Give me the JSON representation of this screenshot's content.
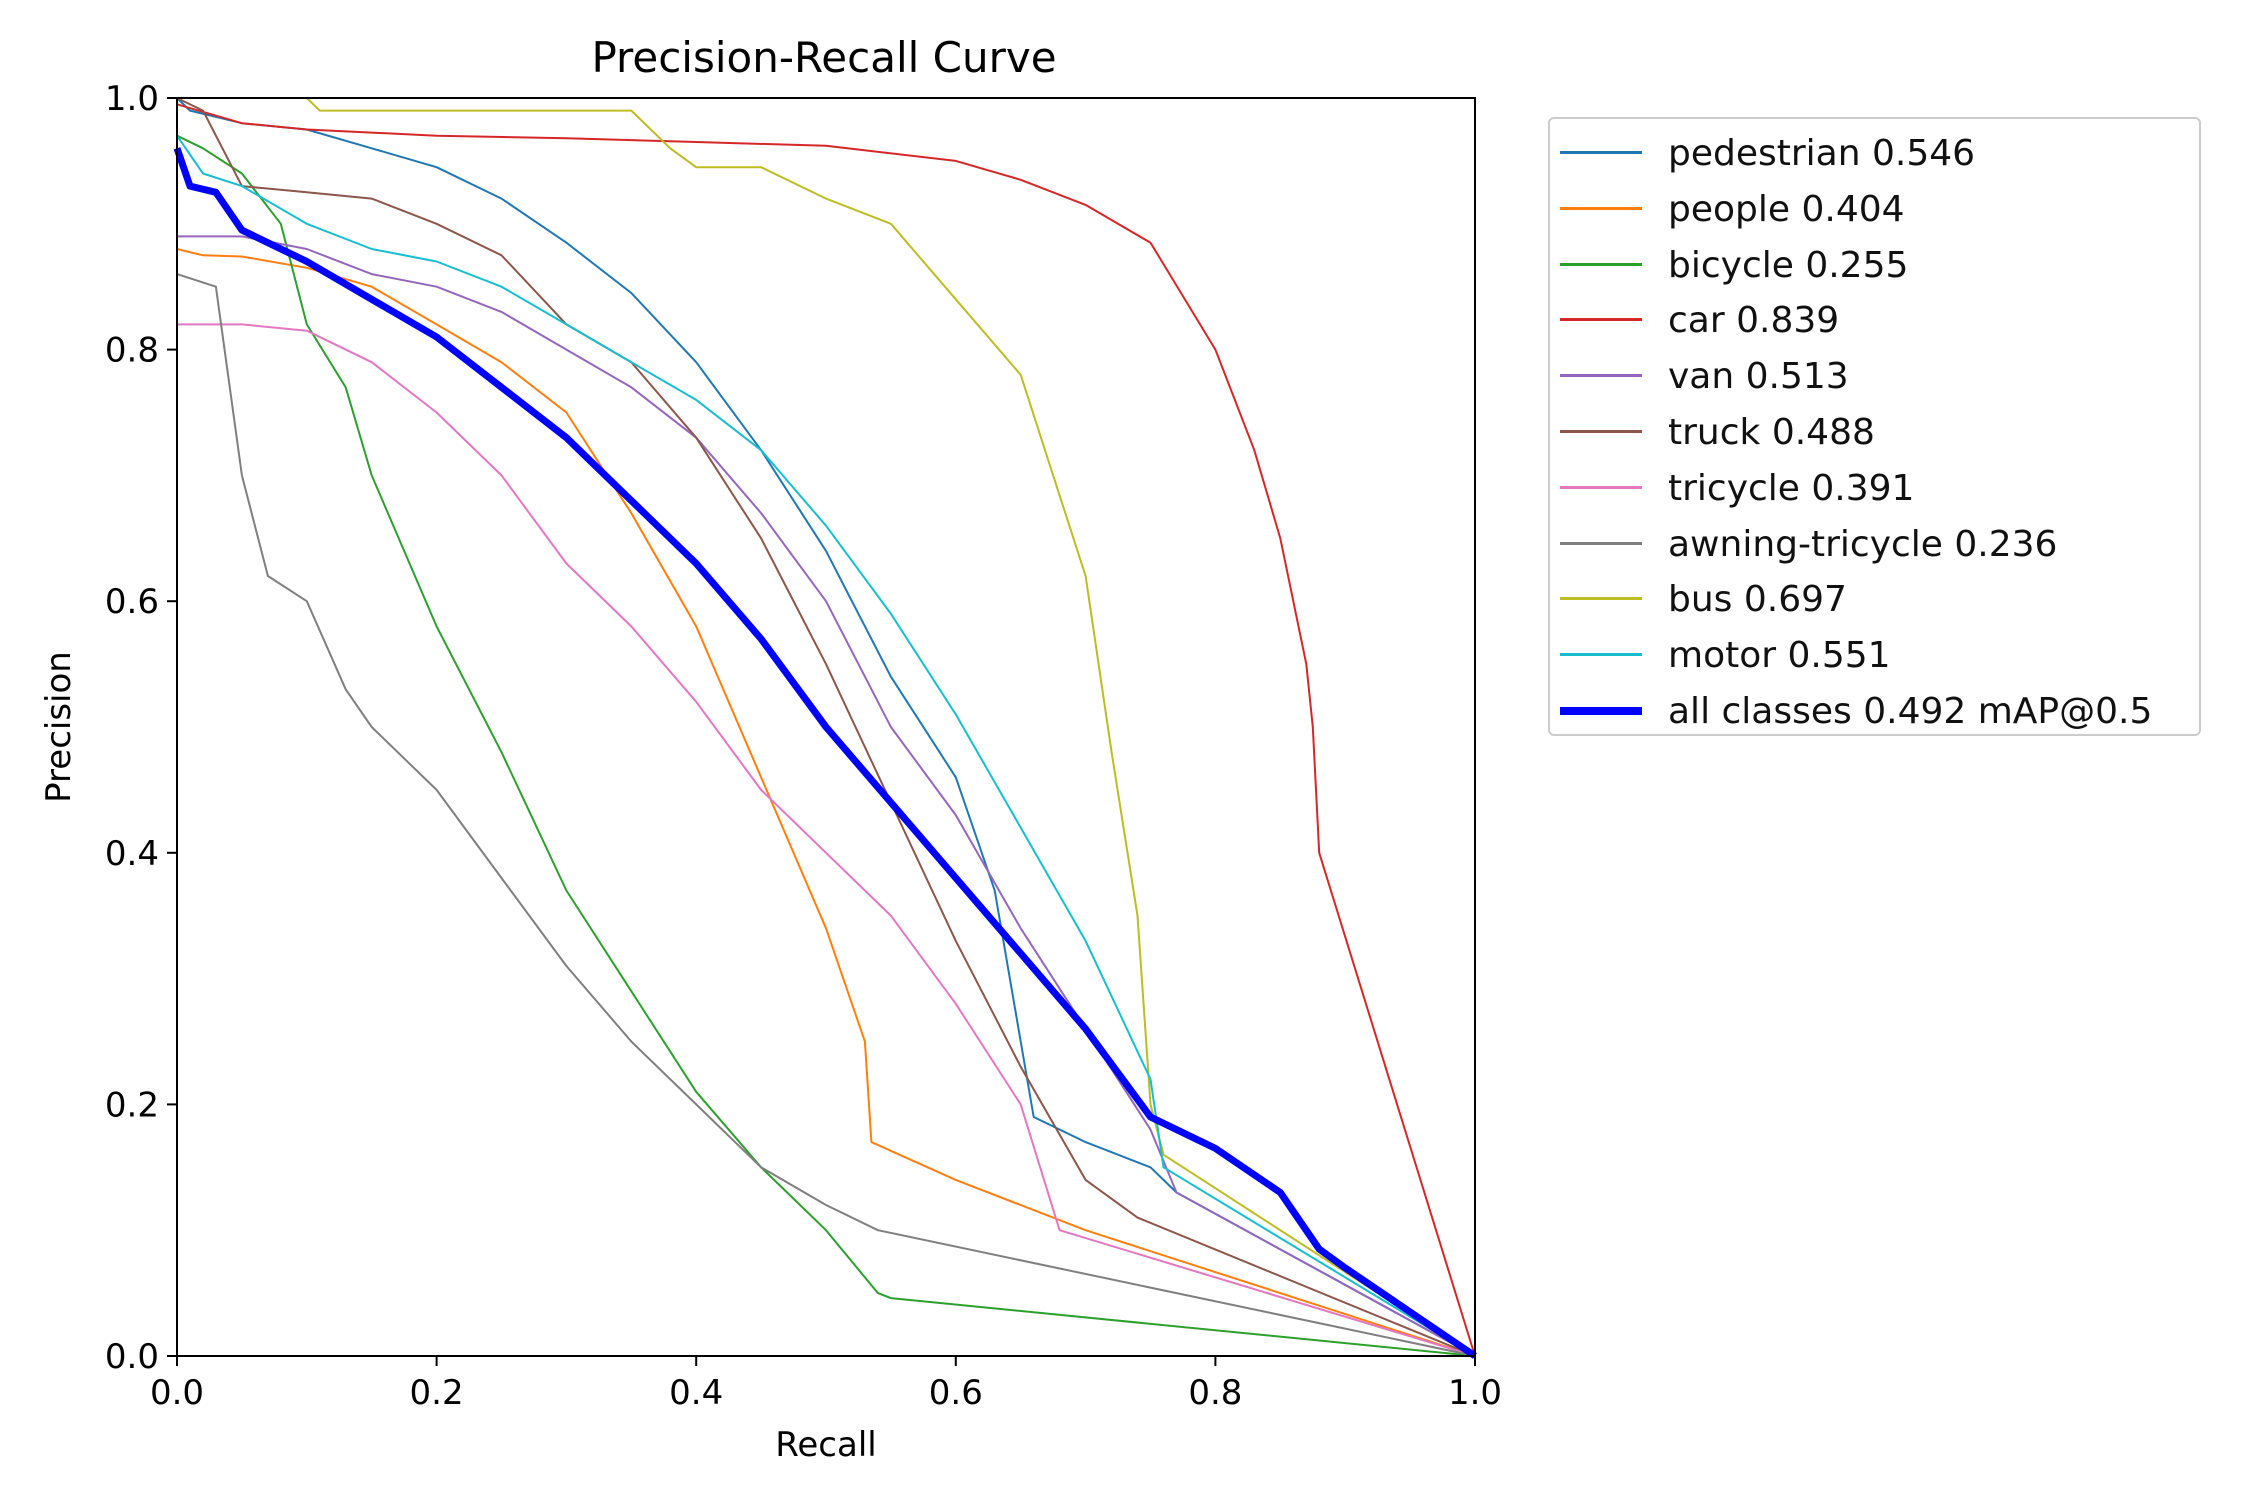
{
  "chart_data": {
    "type": "line",
    "title": "Precision-Recall Curve",
    "xlabel": "Recall",
    "ylabel": "Precision",
    "xlim": [
      0,
      1
    ],
    "ylim": [
      0,
      1
    ],
    "xticks": [
      "0.0",
      "0.2",
      "0.4",
      "0.6",
      "0.8",
      "1.0"
    ],
    "yticks": [
      "0.0",
      "0.2",
      "0.4",
      "0.6",
      "0.8",
      "1.0"
    ],
    "legend_position": "outside-right-top",
    "series": [
      {
        "name": "pedestrian",
        "label": "pedestrian 0.546",
        "color": "#1f77b4",
        "width": 1,
        "points": [
          [
            0,
            1.0
          ],
          [
            0.01,
            0.99
          ],
          [
            0.05,
            0.98
          ],
          [
            0.1,
            0.975
          ],
          [
            0.15,
            0.96
          ],
          [
            0.2,
            0.945
          ],
          [
            0.25,
            0.92
          ],
          [
            0.3,
            0.885
          ],
          [
            0.35,
            0.845
          ],
          [
            0.4,
            0.79
          ],
          [
            0.45,
            0.72
          ],
          [
            0.5,
            0.64
          ],
          [
            0.55,
            0.54
          ],
          [
            0.6,
            0.46
          ],
          [
            0.63,
            0.37
          ],
          [
            0.66,
            0.19
          ],
          [
            0.7,
            0.17
          ],
          [
            0.75,
            0.15
          ],
          [
            0.77,
            0.13
          ],
          [
            1.0,
            0.0
          ]
        ]
      },
      {
        "name": "people",
        "label": "people 0.404",
        "color": "#ff7f0e",
        "width": 1,
        "points": [
          [
            0,
            0.88
          ],
          [
            0.02,
            0.875
          ],
          [
            0.05,
            0.874
          ],
          [
            0.1,
            0.865
          ],
          [
            0.15,
            0.85
          ],
          [
            0.2,
            0.82
          ],
          [
            0.25,
            0.79
          ],
          [
            0.3,
            0.75
          ],
          [
            0.35,
            0.67
          ],
          [
            0.4,
            0.58
          ],
          [
            0.45,
            0.46
          ],
          [
            0.5,
            0.34
          ],
          [
            0.53,
            0.25
          ],
          [
            0.535,
            0.17
          ],
          [
            0.6,
            0.14
          ],
          [
            0.7,
            0.1
          ],
          [
            1.0,
            0.0
          ]
        ]
      },
      {
        "name": "bicycle",
        "label": "bicycle 0.255",
        "color": "#2ca02c",
        "width": 1,
        "points": [
          [
            0,
            0.97
          ],
          [
            0.02,
            0.96
          ],
          [
            0.05,
            0.94
          ],
          [
            0.08,
            0.9
          ],
          [
            0.1,
            0.82
          ],
          [
            0.13,
            0.77
          ],
          [
            0.15,
            0.7
          ],
          [
            0.2,
            0.58
          ],
          [
            0.25,
            0.48
          ],
          [
            0.3,
            0.37
          ],
          [
            0.35,
            0.29
          ],
          [
            0.4,
            0.21
          ],
          [
            0.45,
            0.15
          ],
          [
            0.5,
            0.1
          ],
          [
            0.54,
            0.05
          ],
          [
            0.55,
            0.046
          ],
          [
            1.0,
            0.0
          ]
        ]
      },
      {
        "name": "car",
        "label": "car 0.839",
        "color": "#d62728",
        "width": 1,
        "points": [
          [
            0,
            0.995
          ],
          [
            0.05,
            0.98
          ],
          [
            0.1,
            0.975
          ],
          [
            0.2,
            0.97
          ],
          [
            0.3,
            0.968
          ],
          [
            0.4,
            0.965
          ],
          [
            0.5,
            0.962
          ],
          [
            0.6,
            0.95
          ],
          [
            0.65,
            0.935
          ],
          [
            0.7,
            0.915
          ],
          [
            0.75,
            0.885
          ],
          [
            0.8,
            0.8
          ],
          [
            0.83,
            0.72
          ],
          [
            0.85,
            0.65
          ],
          [
            0.87,
            0.55
          ],
          [
            0.875,
            0.5
          ],
          [
            0.88,
            0.4
          ],
          [
            1.0,
            0.0
          ]
        ]
      },
      {
        "name": "van",
        "label": "van 0.513",
        "color": "#9467bd",
        "width": 1,
        "points": [
          [
            0,
            0.89
          ],
          [
            0.05,
            0.89
          ],
          [
            0.1,
            0.88
          ],
          [
            0.15,
            0.86
          ],
          [
            0.2,
            0.85
          ],
          [
            0.25,
            0.83
          ],
          [
            0.3,
            0.8
          ],
          [
            0.35,
            0.77
          ],
          [
            0.4,
            0.73
          ],
          [
            0.45,
            0.67
          ],
          [
            0.5,
            0.6
          ],
          [
            0.55,
            0.5
          ],
          [
            0.6,
            0.43
          ],
          [
            0.65,
            0.34
          ],
          [
            0.7,
            0.26
          ],
          [
            0.75,
            0.18
          ],
          [
            0.77,
            0.13
          ],
          [
            1.0,
            0.0
          ]
        ]
      },
      {
        "name": "truck",
        "label": "truck 0.488",
        "color": "#8c564b",
        "width": 1,
        "points": [
          [
            0,
            1.0
          ],
          [
            0.02,
            0.99
          ],
          [
            0.05,
            0.93
          ],
          [
            0.1,
            0.925
          ],
          [
            0.15,
            0.92
          ],
          [
            0.2,
            0.9
          ],
          [
            0.25,
            0.875
          ],
          [
            0.3,
            0.82
          ],
          [
            0.35,
            0.79
          ],
          [
            0.4,
            0.73
          ],
          [
            0.45,
            0.65
          ],
          [
            0.5,
            0.55
          ],
          [
            0.55,
            0.44
          ],
          [
            0.6,
            0.33
          ],
          [
            0.65,
            0.23
          ],
          [
            0.7,
            0.14
          ],
          [
            0.74,
            0.11
          ],
          [
            1.0,
            0.0
          ]
        ]
      },
      {
        "name": "tricycle",
        "label": "tricycle 0.391",
        "color": "#e377c2",
        "width": 1,
        "points": [
          [
            0,
            0.82
          ],
          [
            0.05,
            0.82
          ],
          [
            0.1,
            0.815
          ],
          [
            0.15,
            0.79
          ],
          [
            0.2,
            0.75
          ],
          [
            0.25,
            0.7
          ],
          [
            0.3,
            0.63
          ],
          [
            0.35,
            0.58
          ],
          [
            0.4,
            0.52
          ],
          [
            0.45,
            0.45
          ],
          [
            0.5,
            0.4
          ],
          [
            0.55,
            0.35
          ],
          [
            0.6,
            0.28
          ],
          [
            0.65,
            0.2
          ],
          [
            0.68,
            0.1
          ],
          [
            1.0,
            0.0
          ]
        ]
      },
      {
        "name": "awning-tricycle",
        "label": "awning-tricycle 0.236",
        "color": "#7f7f7f",
        "width": 1,
        "points": [
          [
            0,
            0.86
          ],
          [
            0.03,
            0.85
          ],
          [
            0.05,
            0.7
          ],
          [
            0.07,
            0.62
          ],
          [
            0.1,
            0.6
          ],
          [
            0.13,
            0.53
          ],
          [
            0.15,
            0.5
          ],
          [
            0.2,
            0.45
          ],
          [
            0.25,
            0.38
          ],
          [
            0.3,
            0.31
          ],
          [
            0.35,
            0.25
          ],
          [
            0.4,
            0.2
          ],
          [
            0.45,
            0.15
          ],
          [
            0.5,
            0.12
          ],
          [
            0.54,
            0.1
          ],
          [
            1.0,
            0.0
          ]
        ]
      },
      {
        "name": "bus",
        "label": "bus 0.697",
        "color": "#bcbd22",
        "width": 1,
        "points": [
          [
            0,
            1.0
          ],
          [
            0.1,
            1.0
          ],
          [
            0.11,
            0.99
          ],
          [
            0.35,
            0.99
          ],
          [
            0.38,
            0.96
          ],
          [
            0.4,
            0.945
          ],
          [
            0.45,
            0.945
          ],
          [
            0.5,
            0.92
          ],
          [
            0.55,
            0.9
          ],
          [
            0.6,
            0.84
          ],
          [
            0.65,
            0.78
          ],
          [
            0.7,
            0.62
          ],
          [
            0.72,
            0.48
          ],
          [
            0.74,
            0.35
          ],
          [
            0.75,
            0.2
          ],
          [
            0.76,
            0.16
          ],
          [
            1.0,
            0.0
          ]
        ]
      },
      {
        "name": "motor",
        "label": "motor 0.551",
        "color": "#17becf",
        "width": 1,
        "points": [
          [
            0,
            0.97
          ],
          [
            0.02,
            0.94
          ],
          [
            0.05,
            0.93
          ],
          [
            0.1,
            0.9
          ],
          [
            0.15,
            0.88
          ],
          [
            0.2,
            0.87
          ],
          [
            0.25,
            0.85
          ],
          [
            0.3,
            0.82
          ],
          [
            0.35,
            0.79
          ],
          [
            0.4,
            0.76
          ],
          [
            0.45,
            0.72
          ],
          [
            0.5,
            0.66
          ],
          [
            0.55,
            0.59
          ],
          [
            0.6,
            0.51
          ],
          [
            0.65,
            0.42
          ],
          [
            0.7,
            0.33
          ],
          [
            0.75,
            0.22
          ],
          [
            0.76,
            0.15
          ],
          [
            1.0,
            0.0
          ]
        ]
      },
      {
        "name": "all classes",
        "label": "all classes 0.492 mAP@0.5",
        "color": "#0000ff",
        "width": 5,
        "points": [
          [
            0,
            0.96
          ],
          [
            0.01,
            0.93
          ],
          [
            0.03,
            0.925
          ],
          [
            0.05,
            0.895
          ],
          [
            0.1,
            0.87
          ],
          [
            0.15,
            0.84
          ],
          [
            0.2,
            0.81
          ],
          [
            0.25,
            0.77
          ],
          [
            0.3,
            0.73
          ],
          [
            0.35,
            0.68
          ],
          [
            0.4,
            0.63
          ],
          [
            0.45,
            0.57
          ],
          [
            0.5,
            0.5
          ],
          [
            0.55,
            0.44
          ],
          [
            0.6,
            0.38
          ],
          [
            0.65,
            0.32
          ],
          [
            0.7,
            0.26
          ],
          [
            0.75,
            0.19
          ],
          [
            0.8,
            0.165
          ],
          [
            0.85,
            0.13
          ],
          [
            0.88,
            0.085
          ],
          [
            0.9,
            0.07
          ],
          [
            1.0,
            0.0
          ]
        ]
      }
    ]
  }
}
